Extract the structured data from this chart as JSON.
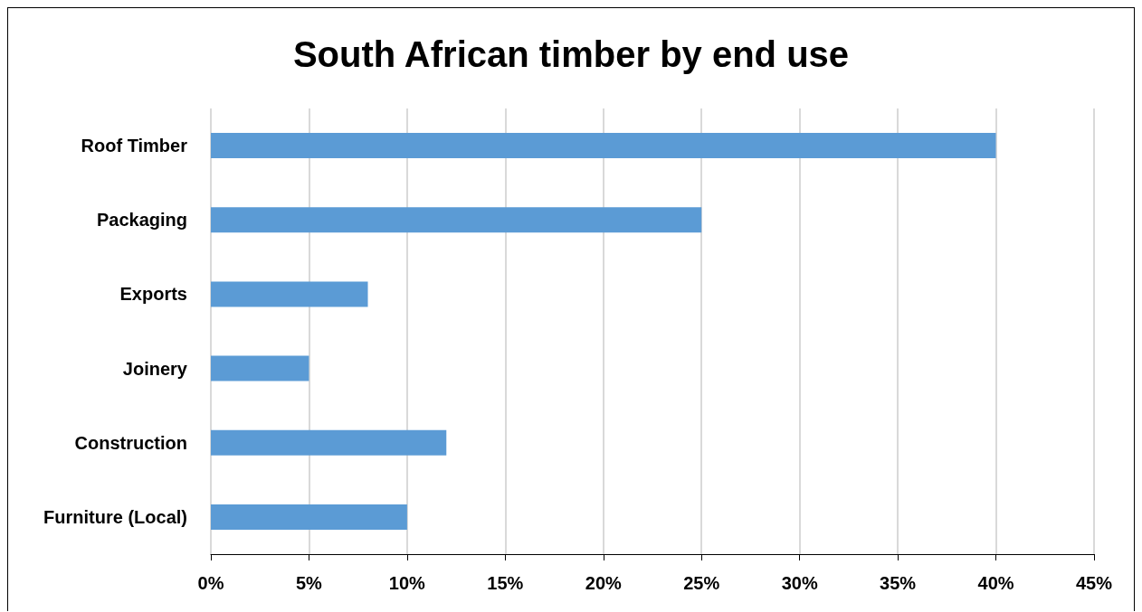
{
  "chart_data": {
    "type": "bar",
    "orientation": "horizontal",
    "title": "South African timber by end use",
    "categories": [
      "Roof Timber",
      "Packaging",
      "Exports",
      "Joinery",
      "Construction",
      "Furniture (Local)"
    ],
    "values": [
      40,
      25,
      8,
      5,
      12,
      10
    ],
    "color": "#5b9bd5",
    "xlim": [
      0,
      45
    ],
    "xticks": [
      {
        "value": 0,
        "label": "0%"
      },
      {
        "value": 5,
        "label": "5%"
      },
      {
        "value": 10,
        "label": "10%"
      },
      {
        "value": 15,
        "label": "15%"
      },
      {
        "value": 20,
        "label": "20%"
      },
      {
        "value": 25,
        "label": "25%"
      },
      {
        "value": 30,
        "label": "30%"
      },
      {
        "value": 35,
        "label": "35%"
      },
      {
        "value": 40,
        "label": "40%"
      },
      {
        "value": 45,
        "label": "45%"
      }
    ],
    "grid": "x"
  }
}
